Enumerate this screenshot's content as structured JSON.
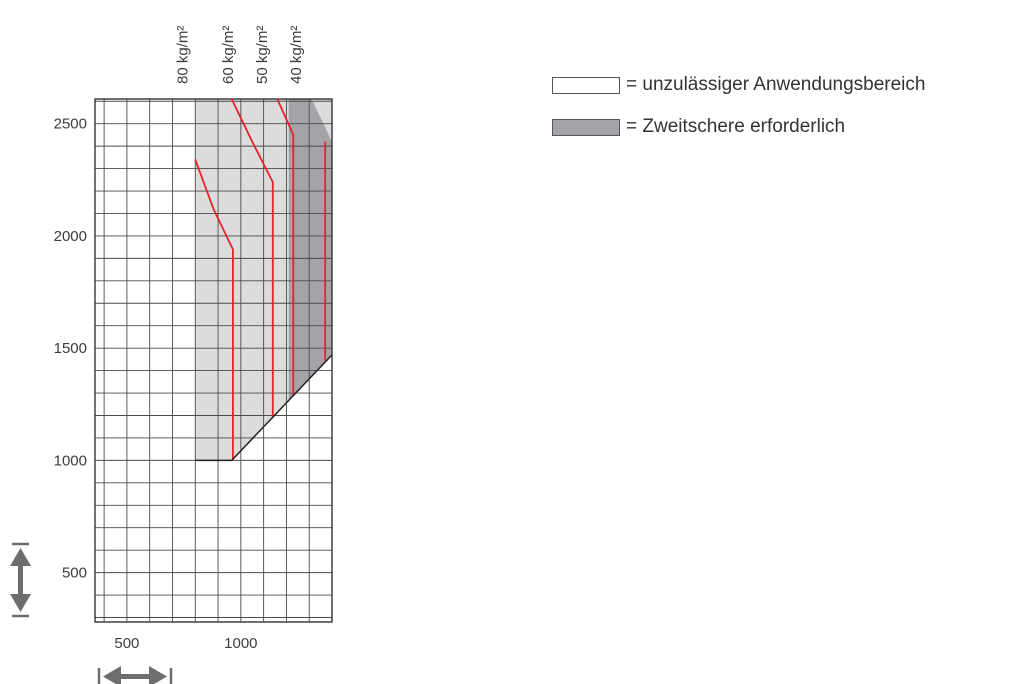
{
  "chart_data": {
    "type": "line",
    "title": "",
    "xlabel": "",
    "ylabel": "",
    "xlim": [
      360,
      1400
    ],
    "ylim": [
      280,
      2610
    ],
    "x_ticks": [
      500,
      1000
    ],
    "y_ticks": [
      500,
      1000,
      1500,
      2000,
      2500
    ],
    "x_tick_labels": [
      "500",
      "1000"
    ],
    "y_tick_labels": [
      "500",
      "1000",
      "1500",
      "2000",
      "2500"
    ],
    "grid": true,
    "grid_step_x": 100,
    "grid_step_y": 100,
    "top_labels": [
      {
        "text": "80 kg/m²",
        "x": 800
      },
      {
        "text": "60 kg/m²",
        "x": 1000
      },
      {
        "text": "50 kg/m²",
        "x": 1150
      },
      {
        "text": "40 kg/m²",
        "x": 1300
      }
    ],
    "regions": [
      {
        "name": "unzulässiger Anwendungsbereich",
        "color": "#dcdcdc",
        "points": [
          [
            800,
            2610
          ],
          [
            1400,
            2610
          ],
          [
            1400,
            1470
          ],
          [
            960,
            1000
          ],
          [
            800,
            1000
          ]
        ]
      },
      {
        "name": "Zweitschere erforderlich",
        "color": "#a4a4a8",
        "points": [
          [
            1210,
            2610
          ],
          [
            1310,
            2610
          ],
          [
            1400,
            2420
          ],
          [
            1400,
            1470
          ],
          [
            1210,
            1265
          ]
        ]
      }
    ],
    "boundary_line": [
      [
        800,
        1000
      ],
      [
        960,
        1000
      ],
      [
        1400,
        1470
      ]
    ],
    "series": [
      {
        "values": [
          [
            800,
            2340
          ],
          [
            880,
            2120
          ],
          [
            965,
            1940
          ],
          [
            965,
            1000
          ]
        ]
      },
      {
        "values": [
          [
            960,
            2610
          ],
          [
            1050,
            2420
          ],
          [
            1140,
            2240
          ],
          [
            1140,
            1190
          ]
        ]
      },
      {
        "values": [
          [
            1160,
            2610
          ],
          [
            1230,
            2450
          ],
          [
            1230,
            1290
          ]
        ]
      },
      {
        "values": [
          [
            1370,
            2420
          ],
          [
            1370,
            1445
          ]
        ]
      }
    ],
    "colors": {
      "series": "#e6232b",
      "boundary": "#222222",
      "grid": "#4a4a4a",
      "arrows": "#6e6e6e"
    },
    "legend": {
      "position": "top-right",
      "items": [
        {
          "swatch_color": "#ffffff",
          "label": "= unzulässiger Anwendungsbereich"
        },
        {
          "swatch_color": "#a4a4a8",
          "label": "= Zweitschere erforderlich"
        }
      ]
    }
  }
}
